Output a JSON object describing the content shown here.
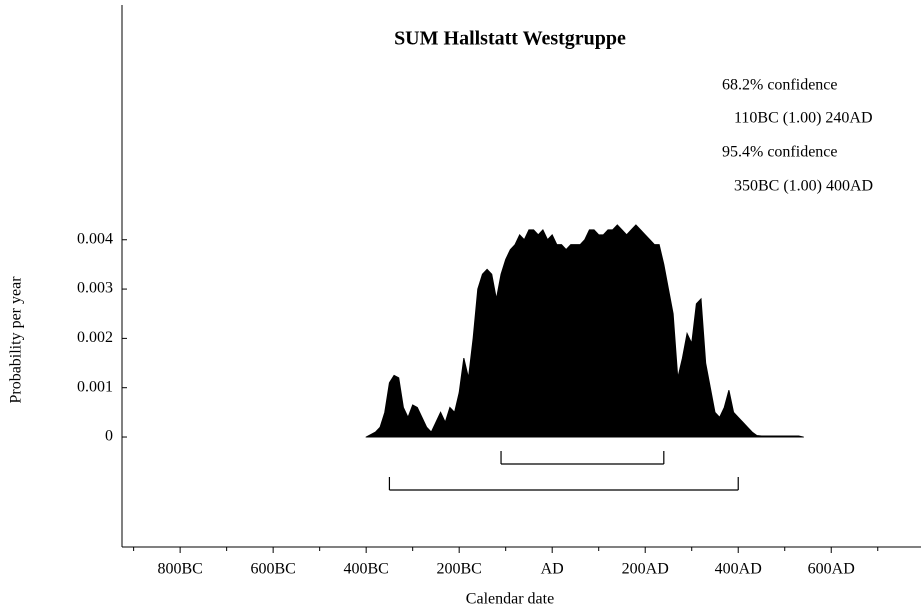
{
  "chart_data": {
    "type": "area",
    "title": "SUM Hallstatt Westgruppe",
    "xlabel": "Calendar date",
    "ylabel": "Probability per year",
    "color": "#000000",
    "x": [
      -400,
      -390,
      -380,
      -370,
      -360,
      -350,
      -340,
      -330,
      -320,
      -310,
      -300,
      -290,
      -280,
      -270,
      -260,
      -250,
      -240,
      -230,
      -220,
      -210,
      -200,
      -190,
      -180,
      -170,
      -160,
      -150,
      -140,
      -130,
      -120,
      -110,
      -100,
      -90,
      -80,
      -70,
      -60,
      -50,
      -40,
      -30,
      -20,
      -10,
      0,
      10,
      20,
      30,
      40,
      50,
      60,
      70,
      80,
      90,
      100,
      110,
      120,
      130,
      140,
      150,
      160,
      170,
      180,
      190,
      200,
      210,
      220,
      230,
      240,
      250,
      260,
      270,
      280,
      290,
      300,
      310,
      320,
      330,
      340,
      350,
      360,
      370,
      380,
      390,
      400,
      410,
      420,
      430,
      440,
      450,
      460,
      470,
      480,
      490,
      500,
      510,
      520,
      530,
      540
    ],
    "values": [
      0,
      5e-05,
      0.0001,
      0.0002,
      0.0005,
      0.0011,
      0.00125,
      0.0012,
      0.0006,
      0.0004,
      0.00065,
      0.0006,
      0.0004,
      0.0002,
      0.0001,
      0.0003,
      0.0005,
      0.0003,
      0.0006,
      0.0005,
      0.0009,
      0.0016,
      0.0012,
      0.002,
      0.003,
      0.0033,
      0.0034,
      0.0033,
      0.0028,
      0.0033,
      0.0036,
      0.0038,
      0.0039,
      0.0041,
      0.004,
      0.0042,
      0.0042,
      0.0041,
      0.0042,
      0.004,
      0.0041,
      0.0039,
      0.0039,
      0.0038,
      0.0039,
      0.0039,
      0.0039,
      0.004,
      0.0042,
      0.0042,
      0.0041,
      0.0041,
      0.0042,
      0.0042,
      0.0043,
      0.0042,
      0.0041,
      0.0042,
      0.0043,
      0.0042,
      0.0041,
      0.004,
      0.0039,
      0.0039,
      0.0035,
      0.003,
      0.0025,
      0.0012,
      0.0016,
      0.0021,
      0.0019,
      0.0027,
      0.0028,
      0.0015,
      0.001,
      0.0005,
      0.0004,
      0.0006,
      0.00095,
      0.0005,
      0.0004,
      0.0003,
      0.0002,
      0.0001,
      3e-05,
      2e-05,
      2e-05,
      2e-05,
      2e-05,
      2e-05,
      2e-05,
      2e-05,
      2e-05,
      2e-05,
      0
    ],
    "xlim": [
      -925,
      793
    ],
    "xticks": [
      {
        "value": -800,
        "label": "800BC"
      },
      {
        "value": -600,
        "label": "600BC"
      },
      {
        "value": -400,
        "label": "400BC"
      },
      {
        "value": -200,
        "label": "200BC"
      },
      {
        "value": 0,
        "label": "AD"
      },
      {
        "value": 200,
        "label": "200AD"
      },
      {
        "value": 400,
        "label": "400AD"
      },
      {
        "value": 600,
        "label": "600AD"
      }
    ],
    "xminor_ticks": [
      -900,
      -700,
      -500,
      -300,
      -100,
      100,
      300,
      500,
      700
    ],
    "ylim": [
      -0.00223,
      0.00876
    ],
    "yticks": [
      0,
      0.001,
      0.002,
      0.003,
      0.004
    ],
    "ranges": [
      {
        "level": "68.2% confidence",
        "from": -110,
        "to": 240,
        "label": "110BC (1.00) 240AD"
      },
      {
        "level": "95.4% confidence",
        "from": -350,
        "to": 400,
        "label": "350BC (1.00) 400AD"
      }
    ]
  }
}
